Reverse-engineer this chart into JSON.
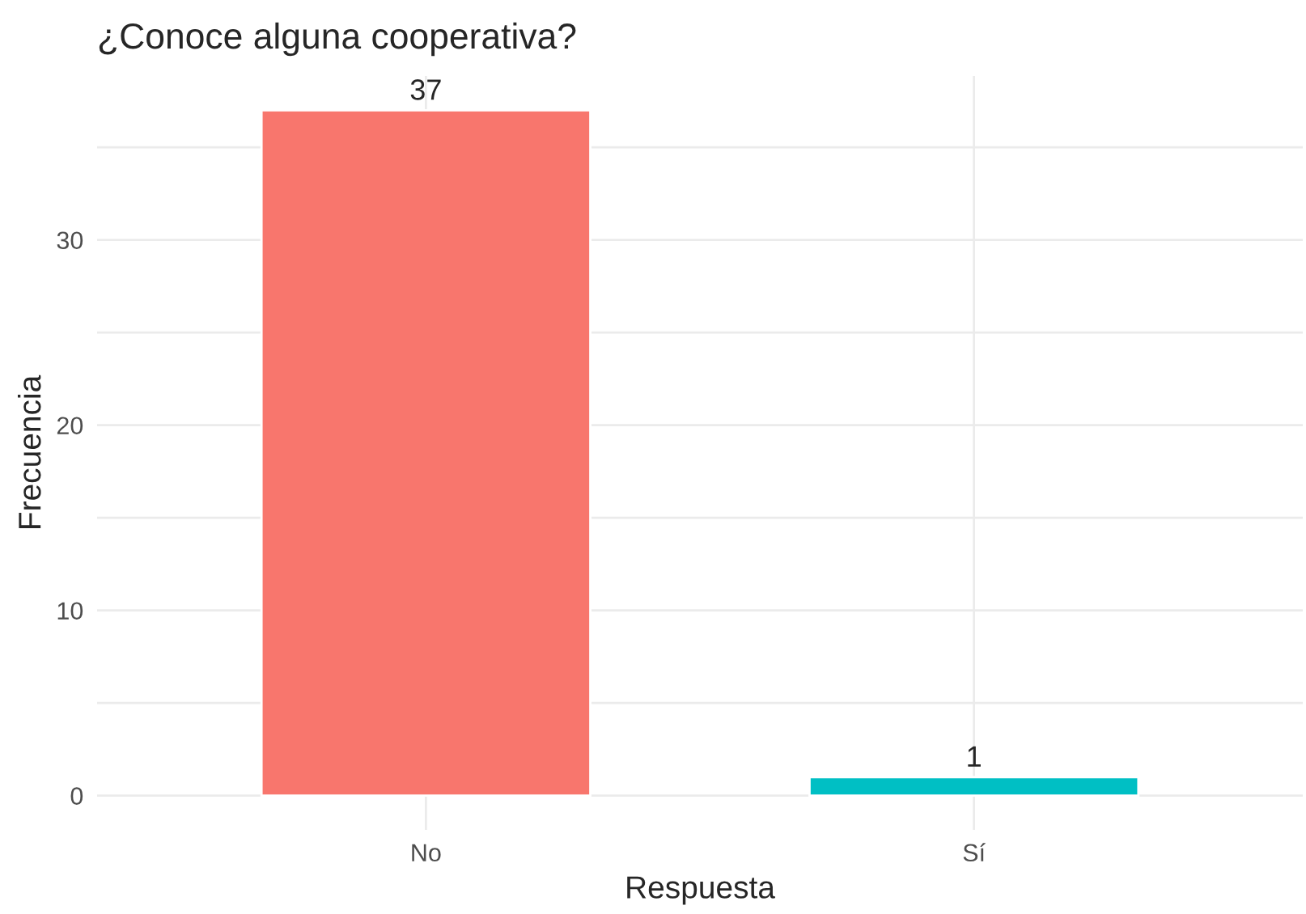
{
  "chart_data": {
    "type": "bar",
    "title": "¿Conoce alguna cooperativa?",
    "xlabel": "Respuesta",
    "ylabel": "Frecuencia",
    "categories": [
      "No",
      "Sí"
    ],
    "values": [
      37,
      1
    ],
    "colors": [
      "#f8766d",
      "#00bfc4"
    ],
    "ylim": [
      -1.85,
      38.85
    ],
    "yticks": [
      0,
      {
        "value": 5,
        "label": null
      },
      10,
      {
        "value": 15,
        "label": null
      },
      20,
      {
        "value": 25,
        "label": null
      },
      30,
      {
        "value": 35,
        "label": null
      }
    ],
    "grid": true,
    "data_labels": true
  }
}
